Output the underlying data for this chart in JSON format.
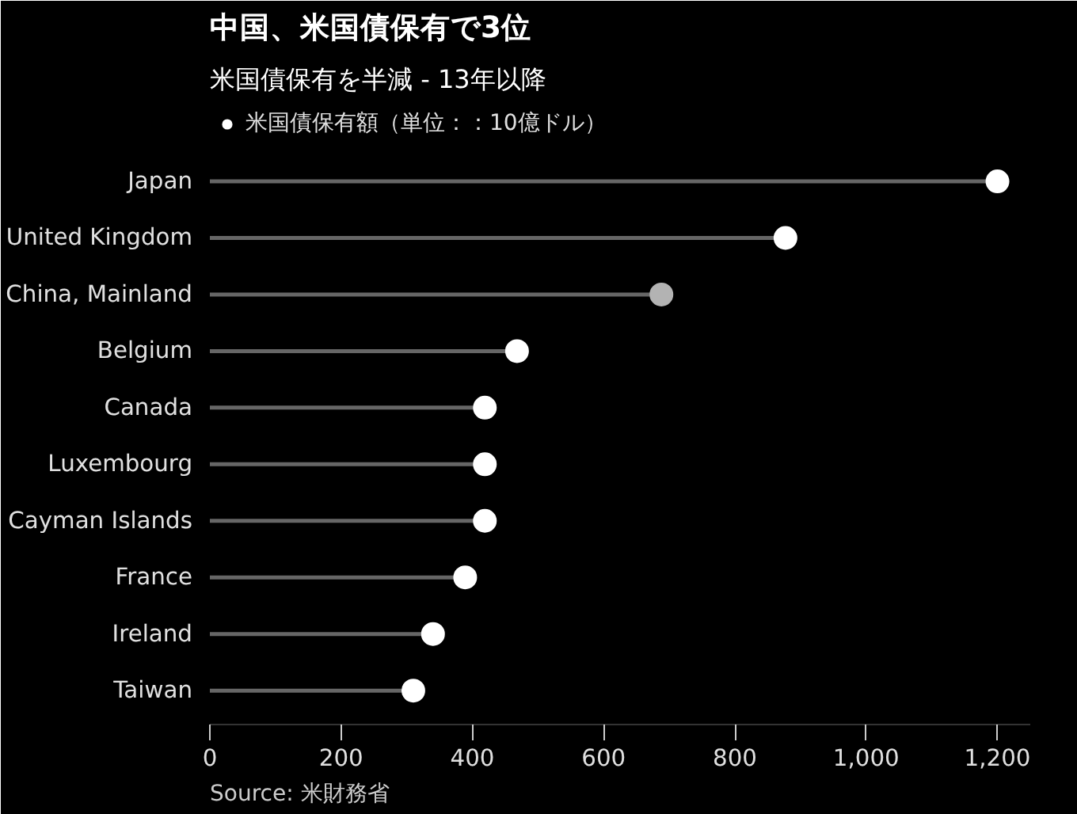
{
  "chart_data": {
    "type": "lollipop",
    "orientation": "horizontal",
    "title": "中国、米国債保有で3位",
    "subtitle": "米国債保有を半減 - 13年以降",
    "categories": [
      "Japan",
      "United Kingdom",
      "China, Mainland",
      "Belgium",
      "Canada",
      "Luxembourg",
      "Cayman Islands",
      "France",
      "Ireland",
      "Taiwan"
    ],
    "series": [
      {
        "name": "米国債保有額（単位：：10億ドル）",
        "color": "#ffffff",
        "colors": [
          "#ffffff",
          "#ffffff",
          "#b3b3b3",
          "#ffffff",
          "#ffffff",
          "#ffffff",
          "#ffffff",
          "#ffffff",
          "#ffffff",
          "#ffffff"
        ],
        "values": [
          1200,
          877,
          688,
          468,
          419,
          419,
          419,
          389,
          340,
          310
        ]
      }
    ],
    "xlim": [
      0,
      1250
    ],
    "xticks": [
      0,
      200,
      400,
      600,
      800,
      {
        "value": 1000,
        "label": "1,000"
      },
      {
        "value": 1200,
        "label": "1,200"
      }
    ],
    "grid": false,
    "legend": "top left",
    "marker": "circle",
    "annotations": [
      "Source: 米財務省"
    ]
  }
}
